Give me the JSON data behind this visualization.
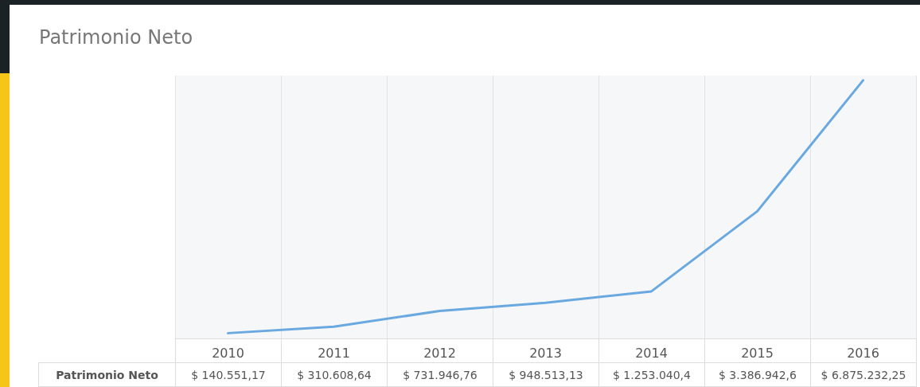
{
  "chart_data": {
    "type": "line",
    "title": "Patrimonio Neto",
    "categories": [
      "2010",
      "2011",
      "2012",
      "2013",
      "2014",
      "2015",
      "2016"
    ],
    "series": [
      {
        "name": "Patrimonio Neto",
        "color": "#6aa8e0",
        "values": [
          140551.17,
          310608.64,
          731946.76,
          948513.13,
          1253040.4,
          3386942.6,
          6875232.25
        ],
        "value_labels": [
          "$ 140.551,17",
          "$ 310.608,64",
          "$ 731.946,76",
          "$ 948.513,13",
          "$ 1.253.040,4",
          "$ 3.386.942,6",
          "$ 6.875.232,25"
        ]
      }
    ],
    "grid": "x",
    "marker": "none",
    "line_style": "solid",
    "legend": false
  }
}
